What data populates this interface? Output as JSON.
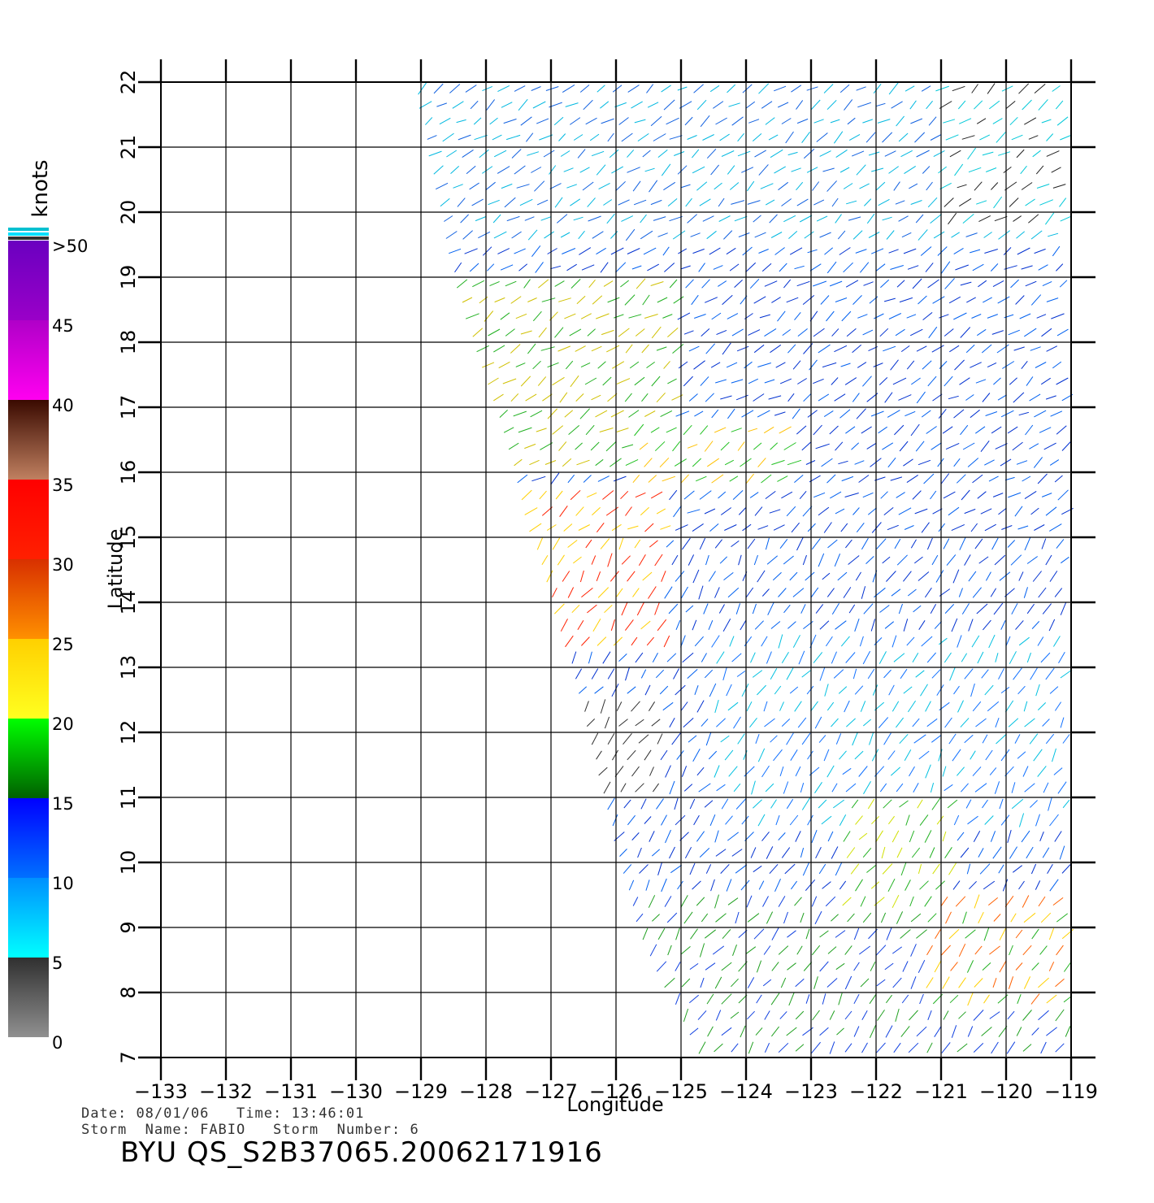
{
  "axes": {
    "x_label": "Longitude",
    "y_label": "Latitude",
    "lon_min": -133,
    "lon_max": -119,
    "lat_min": 7,
    "lat_max": 22,
    "lon_ticks": [
      "-133",
      "-132",
      "-131",
      "-130",
      "-129",
      "-128",
      "-127",
      "-126",
      "-125",
      "-124",
      "-123",
      "-122",
      "-121",
      "-120",
      "-119"
    ],
    "lat_ticks": [
      "7",
      "8",
      "9",
      "10",
      "11",
      "12",
      "13",
      "14",
      "15",
      "16",
      "17",
      "18",
      "19",
      "20",
      "21",
      "22"
    ],
    "grid": true
  },
  "colorbar": {
    "title": "knots",
    "labels": [
      ">50",
      "45",
      "40",
      "35",
      "30",
      "25",
      "20",
      "15",
      "10",
      "5",
      "0"
    ],
    "bands": [
      {
        "from": 45,
        "to": 50,
        "colors": [
          "#6a00c0",
          "#9a00c8"
        ]
      },
      {
        "from": 40,
        "to": 45,
        "colors": [
          "#b000c8",
          "#ff00f0"
        ]
      },
      {
        "from": 35,
        "to": 40,
        "colors": [
          "#3a0a00",
          "#c08060"
        ]
      },
      {
        "from": 30,
        "to": 35,
        "colors": [
          "#ff0000",
          "#ff2000"
        ]
      },
      {
        "from": 25,
        "to": 30,
        "colors": [
          "#d83000",
          "#ff9000"
        ]
      },
      {
        "from": 20,
        "to": 25,
        "colors": [
          "#ffd000",
          "#ffff20"
        ]
      },
      {
        "from": 15,
        "to": 20,
        "colors": [
          "#00ff00",
          "#006000"
        ]
      },
      {
        "from": 10,
        "to": 15,
        "colors": [
          "#0000ff",
          "#0070ff"
        ]
      },
      {
        "from": 5,
        "to": 10,
        "colors": [
          "#0090ff",
          "#00ffff"
        ]
      },
      {
        "from": 0,
        "to": 5,
        "colors": [
          "#303030",
          "#909090"
        ]
      }
    ]
  },
  "wind_regions": [
    {
      "name": "north-calm-light",
      "lon": [
        -123.5,
        -119
      ],
      "lat": [
        20,
        22
      ],
      "color": "#00d0e0"
    },
    {
      "name": "storm-core-west",
      "lon": [
        -127,
        -125.5
      ],
      "lat": [
        13.5,
        15.5
      ],
      "color": "#ff2000"
    },
    {
      "name": "storm-band-north",
      "lon": [
        -125.5,
        -123
      ],
      "lat": [
        16,
        17
      ],
      "color": "#ffd000"
    },
    {
      "name": "south-east-band",
      "lon": [
        -121,
        -119
      ],
      "lat": [
        8,
        9.5
      ],
      "color": "#ff9000"
    }
  ],
  "footer": {
    "date_label": "Date:",
    "date": "08/01/06",
    "time_label": "Time:",
    "time": "13:46:01",
    "storm_name_label": "Storm  Name:",
    "storm_name": "FABIO",
    "storm_number_label": "Storm  Number:",
    "storm_number": "6",
    "product": "BYU  QS_S2B37065.20062171916"
  }
}
